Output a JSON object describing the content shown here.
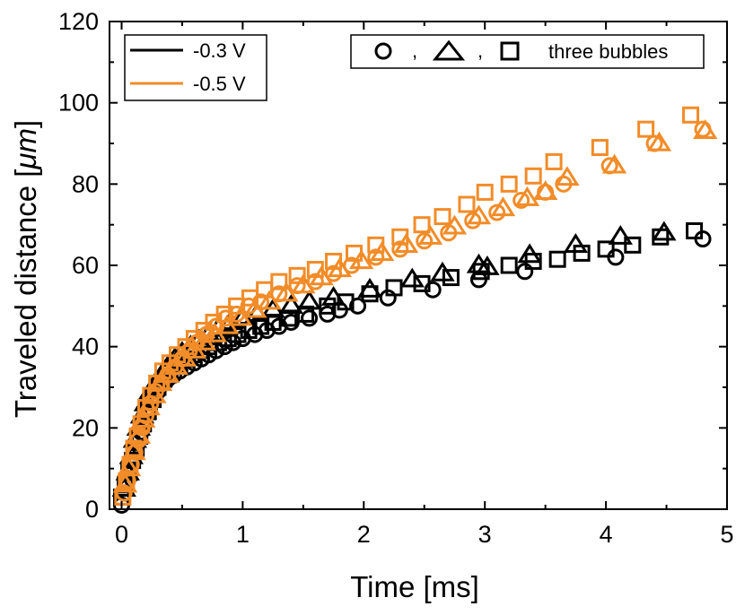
{
  "chart_data": {
    "type": "scatter",
    "title": "",
    "xlabel": "Time [ms]",
    "ylabel_main": "Traveled distance [",
    "ylabel_unit": "μm",
    "ylabel_close": "]",
    "xlim": [
      -0.1,
      5.0
    ],
    "ylim": [
      0,
      120
    ],
    "xticks": [
      0,
      1,
      2,
      3,
      4,
      5
    ],
    "yticks": [
      0,
      20,
      40,
      60,
      80,
      100,
      120
    ],
    "grid": false,
    "colors": {
      "minus03": "#000000",
      "minus05": "#F28C28"
    },
    "legend_lines": {
      "placement": "top-left",
      "items": [
        {
          "label": "-0.3 V",
          "color": "#000000"
        },
        {
          "label": "-0.5 V",
          "color": "#F28C28"
        }
      ]
    },
    "legend_markers": {
      "placement": "top-right",
      "text": "three bubbles",
      "separator": ","
    },
    "series": [
      {
        "name": "-0.3 V",
        "color": "#000000",
        "marker": "circle",
        "x": [
          0.0,
          0.02,
          0.04,
          0.06,
          0.08,
          0.1,
          0.12,
          0.14,
          0.16,
          0.18,
          0.2,
          0.23,
          0.26,
          0.3,
          0.34,
          0.38,
          0.43,
          0.48,
          0.54,
          0.6,
          0.66,
          0.72,
          0.78,
          0.85,
          0.92,
          1.0,
          1.1,
          1.2,
          1.3,
          1.4,
          1.55,
          1.7,
          1.8,
          1.95,
          2.2,
          2.57,
          2.95,
          3.33,
          4.08,
          4.8
        ],
        "y": [
          1,
          4,
          7,
          9,
          11,
          13,
          15,
          17,
          19,
          21,
          23,
          25,
          27,
          29,
          31,
          32,
          33,
          34,
          35,
          36,
          37,
          38,
          39,
          40,
          41,
          42,
          43,
          44,
          45,
          46,
          47,
          48,
          49,
          50,
          52,
          54,
          56.5,
          58.5,
          62,
          66.5
        ]
      },
      {
        "name": "-0.3 V",
        "color": "#000000",
        "marker": "triangle",
        "x": [
          0.02,
          0.05,
          0.08,
          0.11,
          0.14,
          0.17,
          0.2,
          0.24,
          0.28,
          0.33,
          0.38,
          0.44,
          0.5,
          0.57,
          0.64,
          0.72,
          0.8,
          0.9,
          1.0,
          1.12,
          1.25,
          1.4,
          1.55,
          1.75,
          2.05,
          2.4,
          2.65,
          2.95,
          3.02,
          3.37,
          3.75,
          4.12,
          4.48
        ],
        "y": [
          5,
          9,
          13,
          17,
          20,
          23,
          26,
          29,
          31,
          33,
          35,
          37,
          38.5,
          40,
          41.5,
          43,
          44.5,
          46,
          47,
          48,
          49,
          50,
          51,
          52,
          54,
          56.5,
          58,
          60,
          59.5,
          62.5,
          65,
          67,
          68
        ]
      },
      {
        "name": "-0.3 V",
        "color": "#000000",
        "marker": "square",
        "x": [
          0.0,
          0.03,
          0.06,
          0.09,
          0.12,
          0.15,
          0.18,
          0.22,
          0.26,
          0.3,
          0.35,
          0.4,
          0.46,
          0.52,
          0.58,
          0.65,
          0.72,
          0.8,
          0.88,
          0.96,
          1.05,
          1.15,
          1.25,
          1.38,
          1.52,
          1.7,
          1.85,
          2.05,
          2.25,
          2.48,
          2.72,
          2.97,
          3.2,
          3.4,
          3.6,
          3.8,
          4.0,
          4.22,
          4.45,
          4.73
        ],
        "y": [
          3,
          6,
          9,
          12,
          15,
          18,
          21,
          24,
          27,
          30,
          32,
          34,
          35.5,
          37,
          38,
          39,
          40,
          41,
          42,
          43,
          44,
          45,
          46,
          47,
          48,
          50,
          51,
          53,
          54.5,
          55.5,
          57,
          58.5,
          60,
          61,
          61.5,
          63,
          64,
          65,
          67,
          68.5
        ]
      },
      {
        "name": "-0.5 V",
        "color": "#F28C28",
        "marker": "circle",
        "x": [
          0.02,
          0.05,
          0.08,
          0.11,
          0.14,
          0.17,
          0.2,
          0.24,
          0.28,
          0.33,
          0.38,
          0.44,
          0.5,
          0.56,
          0.62,
          0.7,
          0.78,
          0.86,
          0.95,
          1.05,
          1.15,
          1.3,
          1.45,
          1.6,
          1.75,
          1.9,
          2.1,
          2.3,
          2.5,
          2.7,
          2.9,
          3.1,
          3.3,
          3.5,
          3.65,
          4.03,
          4.4,
          4.8
        ],
        "y": [
          4,
          7,
          11,
          14,
          17,
          20,
          23,
          26,
          29,
          31,
          33,
          35,
          37,
          39,
          41,
          43,
          45,
          47,
          48,
          50,
          51,
          53,
          55,
          56,
          58,
          60,
          62,
          64,
          66,
          68,
          71,
          73,
          76,
          78,
          80,
          84.5,
          90,
          93.5
        ]
      },
      {
        "name": "-0.5 V",
        "color": "#F28C28",
        "marker": "triangle",
        "x": [
          0.03,
          0.06,
          0.1,
          0.14,
          0.18,
          0.22,
          0.27,
          0.32,
          0.38,
          0.45,
          0.52,
          0.6,
          0.68,
          0.77,
          0.87,
          0.98,
          1.1,
          1.22,
          1.36,
          1.5,
          1.65,
          1.8,
          1.98,
          2.15,
          2.35,
          2.55,
          2.75,
          2.95,
          3.15,
          3.35,
          3.5,
          3.68,
          4.07,
          4.44,
          4.82
        ],
        "y": [
          6,
          10,
          14,
          18,
          22,
          25,
          28,
          31,
          33,
          35,
          37,
          39,
          41,
          43,
          45,
          47,
          49,
          51,
          53,
          55,
          57,
          59,
          61,
          63,
          65,
          67,
          69.5,
          72,
          74,
          76.5,
          78,
          81.5,
          84.5,
          90,
          93
        ]
      },
      {
        "name": "-0.5 V",
        "color": "#F28C28",
        "marker": "square",
        "x": [
          0.01,
          0.04,
          0.07,
          0.1,
          0.13,
          0.16,
          0.2,
          0.24,
          0.29,
          0.34,
          0.4,
          0.46,
          0.53,
          0.6,
          0.68,
          0.76,
          0.85,
          0.95,
          1.06,
          1.18,
          1.3,
          1.45,
          1.6,
          1.75,
          1.92,
          2.1,
          2.3,
          2.48,
          2.65,
          2.85,
          3.0,
          3.2,
          3.4,
          3.57,
          3.95,
          4.33,
          4.7
        ],
        "y": [
          3,
          7,
          11,
          15,
          18,
          21,
          25,
          28,
          31,
          34,
          36,
          38,
          40,
          42,
          44,
          46,
          48,
          50,
          52,
          54,
          56,
          57.5,
          59,
          61,
          63,
          65,
          67,
          70,
          72,
          75,
          78,
          80,
          82,
          85.5,
          89,
          93.5,
          97
        ]
      }
    ]
  }
}
